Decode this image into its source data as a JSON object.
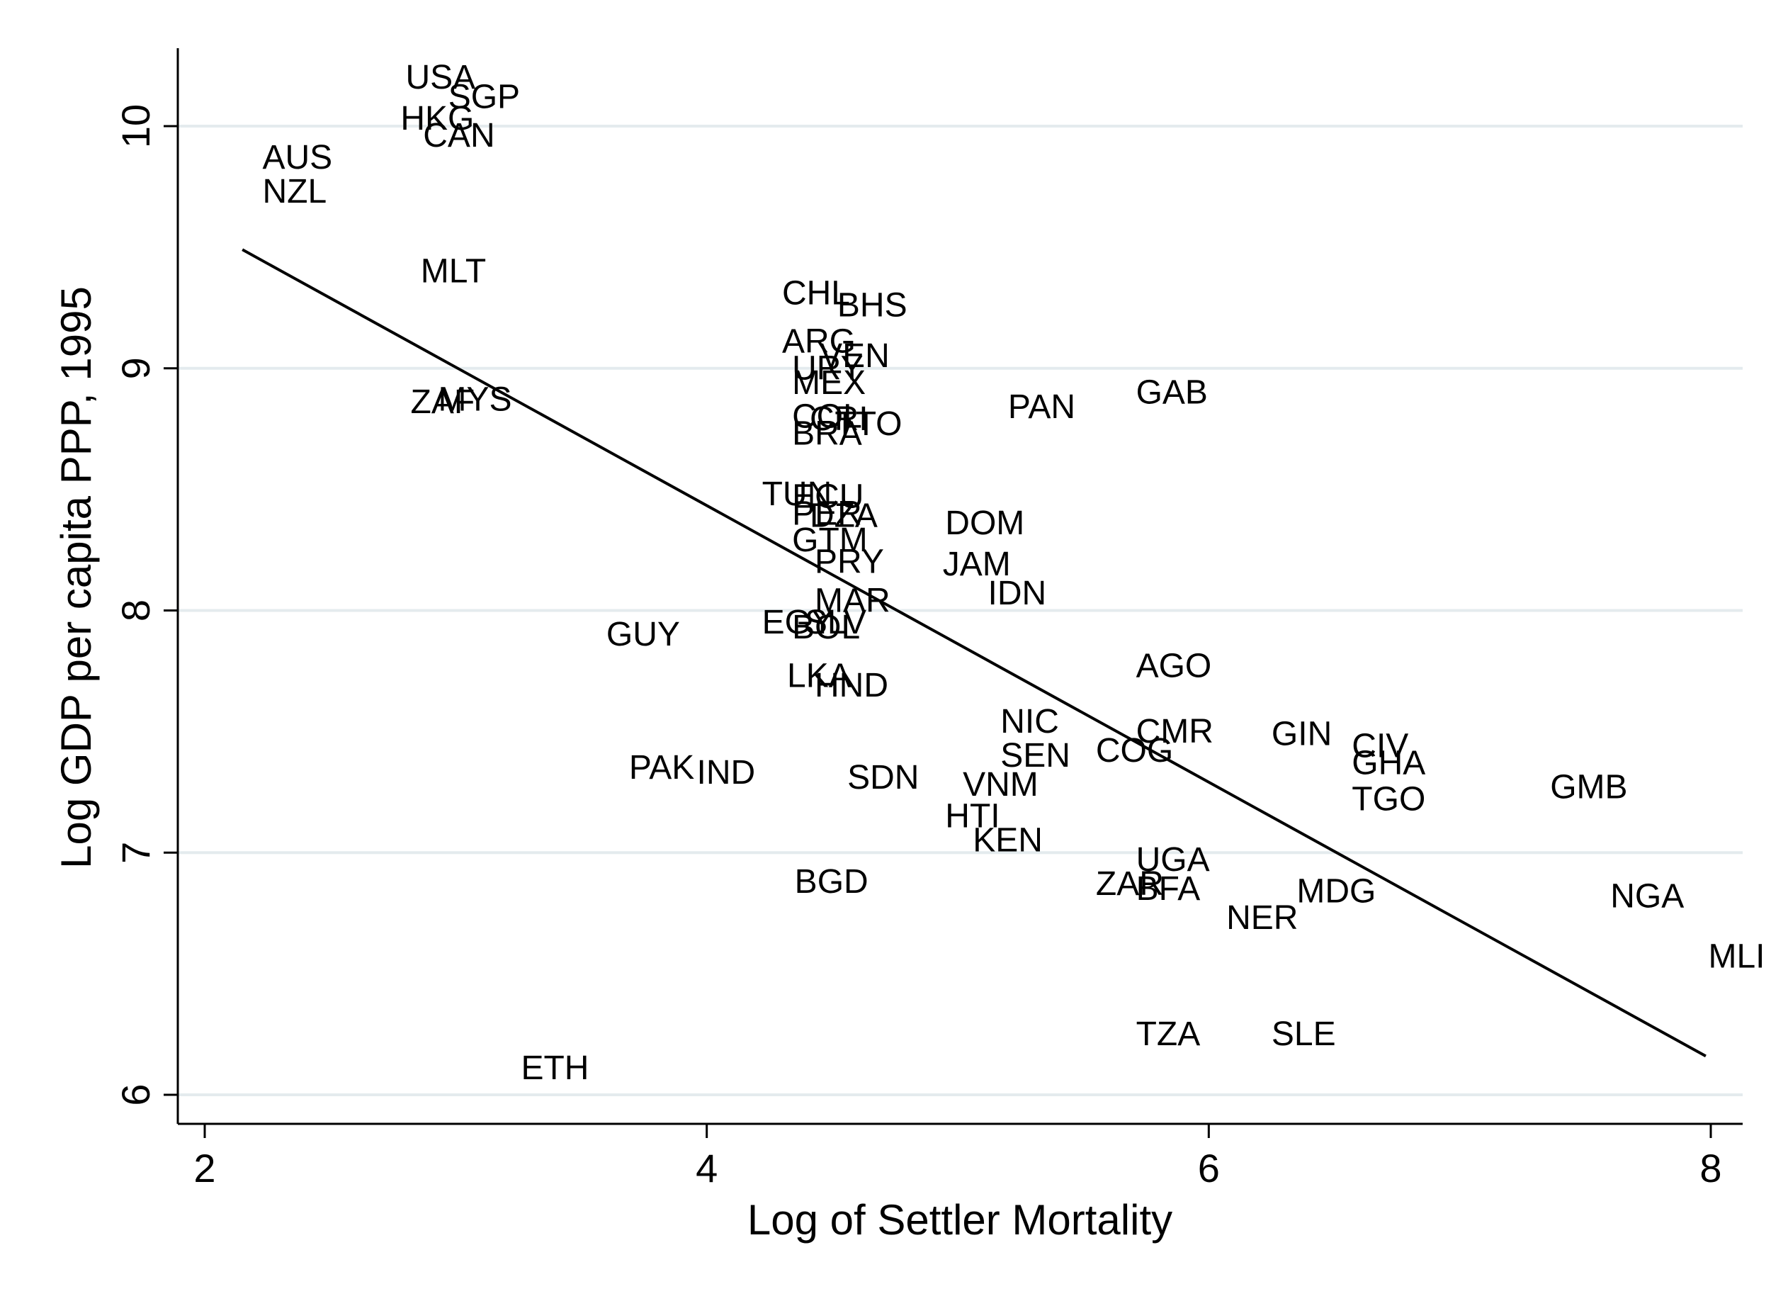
{
  "chart_data": {
    "type": "scatter",
    "xlabel": "Log of Settler Mortality",
    "ylabel": "Log GDP per capita PPP, 1995",
    "xlim": [
      1.9,
      8.12
    ],
    "ylim": [
      5.88,
      10.33
    ],
    "xticks": [
      2,
      4,
      6,
      8
    ],
    "yticks": [
      6,
      7,
      8,
      9,
      10
    ],
    "grid": "horizontal",
    "legend": "none",
    "marker": "country-code labels",
    "fit_line": {
      "x": [
        2.15,
        7.98
      ],
      "y": [
        9.49,
        6.16
      ]
    },
    "points": [
      {
        "label": "USA",
        "x": 2.8,
        "y": 10.2
      },
      {
        "label": "SGP",
        "x": 2.97,
        "y": 10.12
      },
      {
        "label": "HKG",
        "x": 2.78,
        "y": 10.03
      },
      {
        "label": "CAN",
        "x": 2.87,
        "y": 9.96
      },
      {
        "label": "AUS",
        "x": 2.23,
        "y": 9.87
      },
      {
        "label": "NZL",
        "x": 2.23,
        "y": 9.73
      },
      {
        "label": "MLT",
        "x": 2.86,
        "y": 9.4
      },
      {
        "label": "ZAF",
        "x": 2.82,
        "y": 8.86
      },
      {
        "label": "MYS",
        "x": 2.93,
        "y": 8.87
      },
      {
        "label": "CHL",
        "x": 4.3,
        "y": 9.31
      },
      {
        "label": "BHS",
        "x": 4.52,
        "y": 9.26
      },
      {
        "label": "ARG",
        "x": 4.3,
        "y": 9.11
      },
      {
        "label": "VEN",
        "x": 4.45,
        "y": 9.05
      },
      {
        "label": "URY",
        "x": 4.34,
        "y": 9.0
      },
      {
        "label": "MEX",
        "x": 4.34,
        "y": 8.94
      },
      {
        "label": "COL",
        "x": 4.34,
        "y": 8.8
      },
      {
        "label": "CRI",
        "x": 4.41,
        "y": 8.79
      },
      {
        "label": "TTO",
        "x": 4.51,
        "y": 8.77
      },
      {
        "label": "BRA",
        "x": 4.34,
        "y": 8.73
      },
      {
        "label": "PAN",
        "x": 5.2,
        "y": 8.84
      },
      {
        "label": "GAB",
        "x": 5.71,
        "y": 8.9
      },
      {
        "label": "TUN",
        "x": 4.22,
        "y": 8.48
      },
      {
        "label": "ECU",
        "x": 4.34,
        "y": 8.47
      },
      {
        "label": "PER",
        "x": 4.34,
        "y": 8.4
      },
      {
        "label": "DZA",
        "x": 4.41,
        "y": 8.39
      },
      {
        "label": "DOM",
        "x": 4.95,
        "y": 8.36
      },
      {
        "label": "GTM",
        "x": 4.34,
        "y": 8.29
      },
      {
        "label": "PRY",
        "x": 4.43,
        "y": 8.2
      },
      {
        "label": "JAM",
        "x": 4.94,
        "y": 8.19
      },
      {
        "label": "IDN",
        "x": 5.12,
        "y": 8.07
      },
      {
        "label": "MAR",
        "x": 4.43,
        "y": 8.04
      },
      {
        "label": "EGY",
        "x": 4.22,
        "y": 7.95
      },
      {
        "label": "SLV",
        "x": 4.39,
        "y": 7.95
      },
      {
        "label": "BOL",
        "x": 4.34,
        "y": 7.93
      },
      {
        "label": "GUY",
        "x": 3.6,
        "y": 7.9
      },
      {
        "label": "AGO",
        "x": 5.71,
        "y": 7.77
      },
      {
        "label": "LKA",
        "x": 4.32,
        "y": 7.73
      },
      {
        "label": "HND",
        "x": 4.43,
        "y": 7.69
      },
      {
        "label": "NIC",
        "x": 5.17,
        "y": 7.54
      },
      {
        "label": "CMR",
        "x": 5.71,
        "y": 7.5
      },
      {
        "label": "GIN",
        "x": 6.25,
        "y": 7.49
      },
      {
        "label": "CIV",
        "x": 6.57,
        "y": 7.44
      },
      {
        "label": "COG",
        "x": 5.55,
        "y": 7.42
      },
      {
        "label": "SEN",
        "x": 5.17,
        "y": 7.4
      },
      {
        "label": "GHA",
        "x": 6.57,
        "y": 7.37
      },
      {
        "label": "PAK",
        "x": 3.69,
        "y": 7.35
      },
      {
        "label": "IND",
        "x": 3.96,
        "y": 7.33
      },
      {
        "label": "SDN",
        "x": 4.56,
        "y": 7.31
      },
      {
        "label": "VNM",
        "x": 5.02,
        "y": 7.28
      },
      {
        "label": "GMB",
        "x": 7.36,
        "y": 7.27
      },
      {
        "label": "TGO",
        "x": 6.57,
        "y": 7.22
      },
      {
        "label": "HTI",
        "x": 4.95,
        "y": 7.15
      },
      {
        "label": "KEN",
        "x": 5.06,
        "y": 7.05
      },
      {
        "label": "UGA",
        "x": 5.71,
        "y": 6.97
      },
      {
        "label": "BGD",
        "x": 4.35,
        "y": 6.88
      },
      {
        "label": "ZAR",
        "x": 5.55,
        "y": 6.87
      },
      {
        "label": "BFA",
        "x": 5.71,
        "y": 6.85
      },
      {
        "label": "MDG",
        "x": 6.35,
        "y": 6.84
      },
      {
        "label": "NGA",
        "x": 7.6,
        "y": 6.82
      },
      {
        "label": "NER",
        "x": 6.07,
        "y": 6.73
      },
      {
        "label": "MLI",
        "x": 7.99,
        "y": 6.57
      },
      {
        "label": "TZA",
        "x": 5.71,
        "y": 6.25
      },
      {
        "label": "SLE",
        "x": 6.25,
        "y": 6.25
      },
      {
        "label": "ETH",
        "x": 3.26,
        "y": 6.11
      }
    ]
  }
}
